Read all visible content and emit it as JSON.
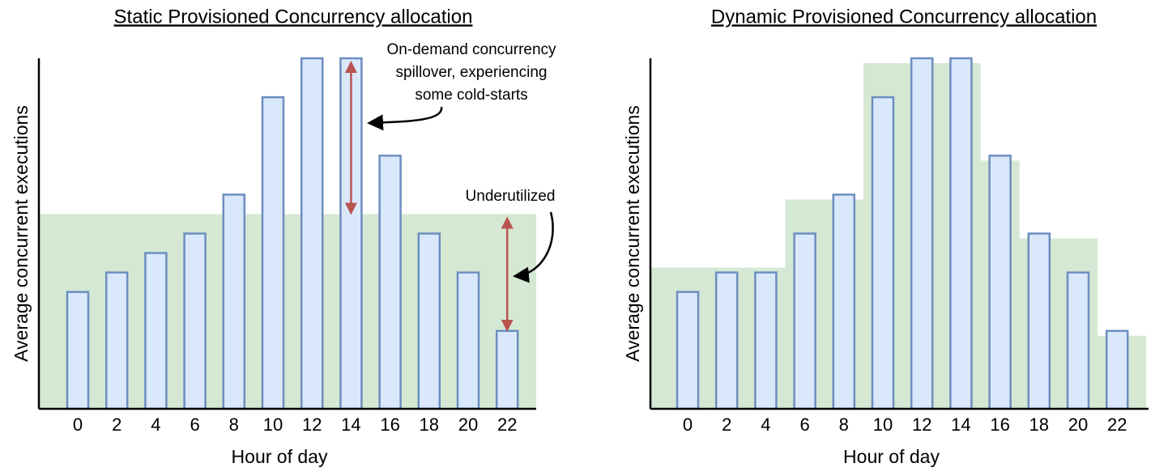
{
  "chart_data": [
    {
      "type": "bar",
      "title": "Static Provisioned Concurrency allocation",
      "x_label": "Hour of day",
      "y_label": "Average concurrent executions",
      "categories": [
        "0",
        "2",
        "4",
        "6",
        "8",
        "10",
        "12",
        "14",
        "16",
        "18",
        "20",
        "22"
      ],
      "values": [
        6,
        7,
        8,
        9,
        11,
        16,
        18,
        18,
        13,
        9,
        7,
        4
      ],
      "provisioned": 10,
      "color": "#dae8fc",
      "edge_color": "#6c8ebf",
      "provisioned_color": "#d5e8d4",
      "arrow_color": "#b85450",
      "ylim": [
        0,
        18
      ],
      "annotations": [
        {
          "lines": [
            "On-demand concurrency",
            "spillover, experiencing",
            "some cold-starts"
          ],
          "bar": 7
        },
        {
          "lines": [
            "Underutilized"
          ],
          "bar": 11
        }
      ]
    },
    {
      "type": "bar",
      "title": "Dynamic Provisioned Concurrency allocation",
      "x_label": "Hour of day",
      "y_label": "Average concurrent executions",
      "categories": [
        "0",
        "2",
        "4",
        "6",
        "8",
        "10",
        "12",
        "14",
        "16",
        "18",
        "20",
        "22"
      ],
      "values": [
        6,
        7,
        7,
        9,
        11,
        16,
        18,
        18,
        13,
        9,
        7,
        4
      ],
      "provisioned": [
        7.25,
        7.25,
        7.25,
        10.75,
        10.75,
        17.75,
        17.75,
        17.75,
        12.75,
        8.75,
        8.75,
        3.75
      ],
      "color": "#dae8fc",
      "edge_color": "#6c8ebf",
      "provisioned_color": "#d5e8d4",
      "ylim": [
        0,
        18
      ]
    }
  ]
}
